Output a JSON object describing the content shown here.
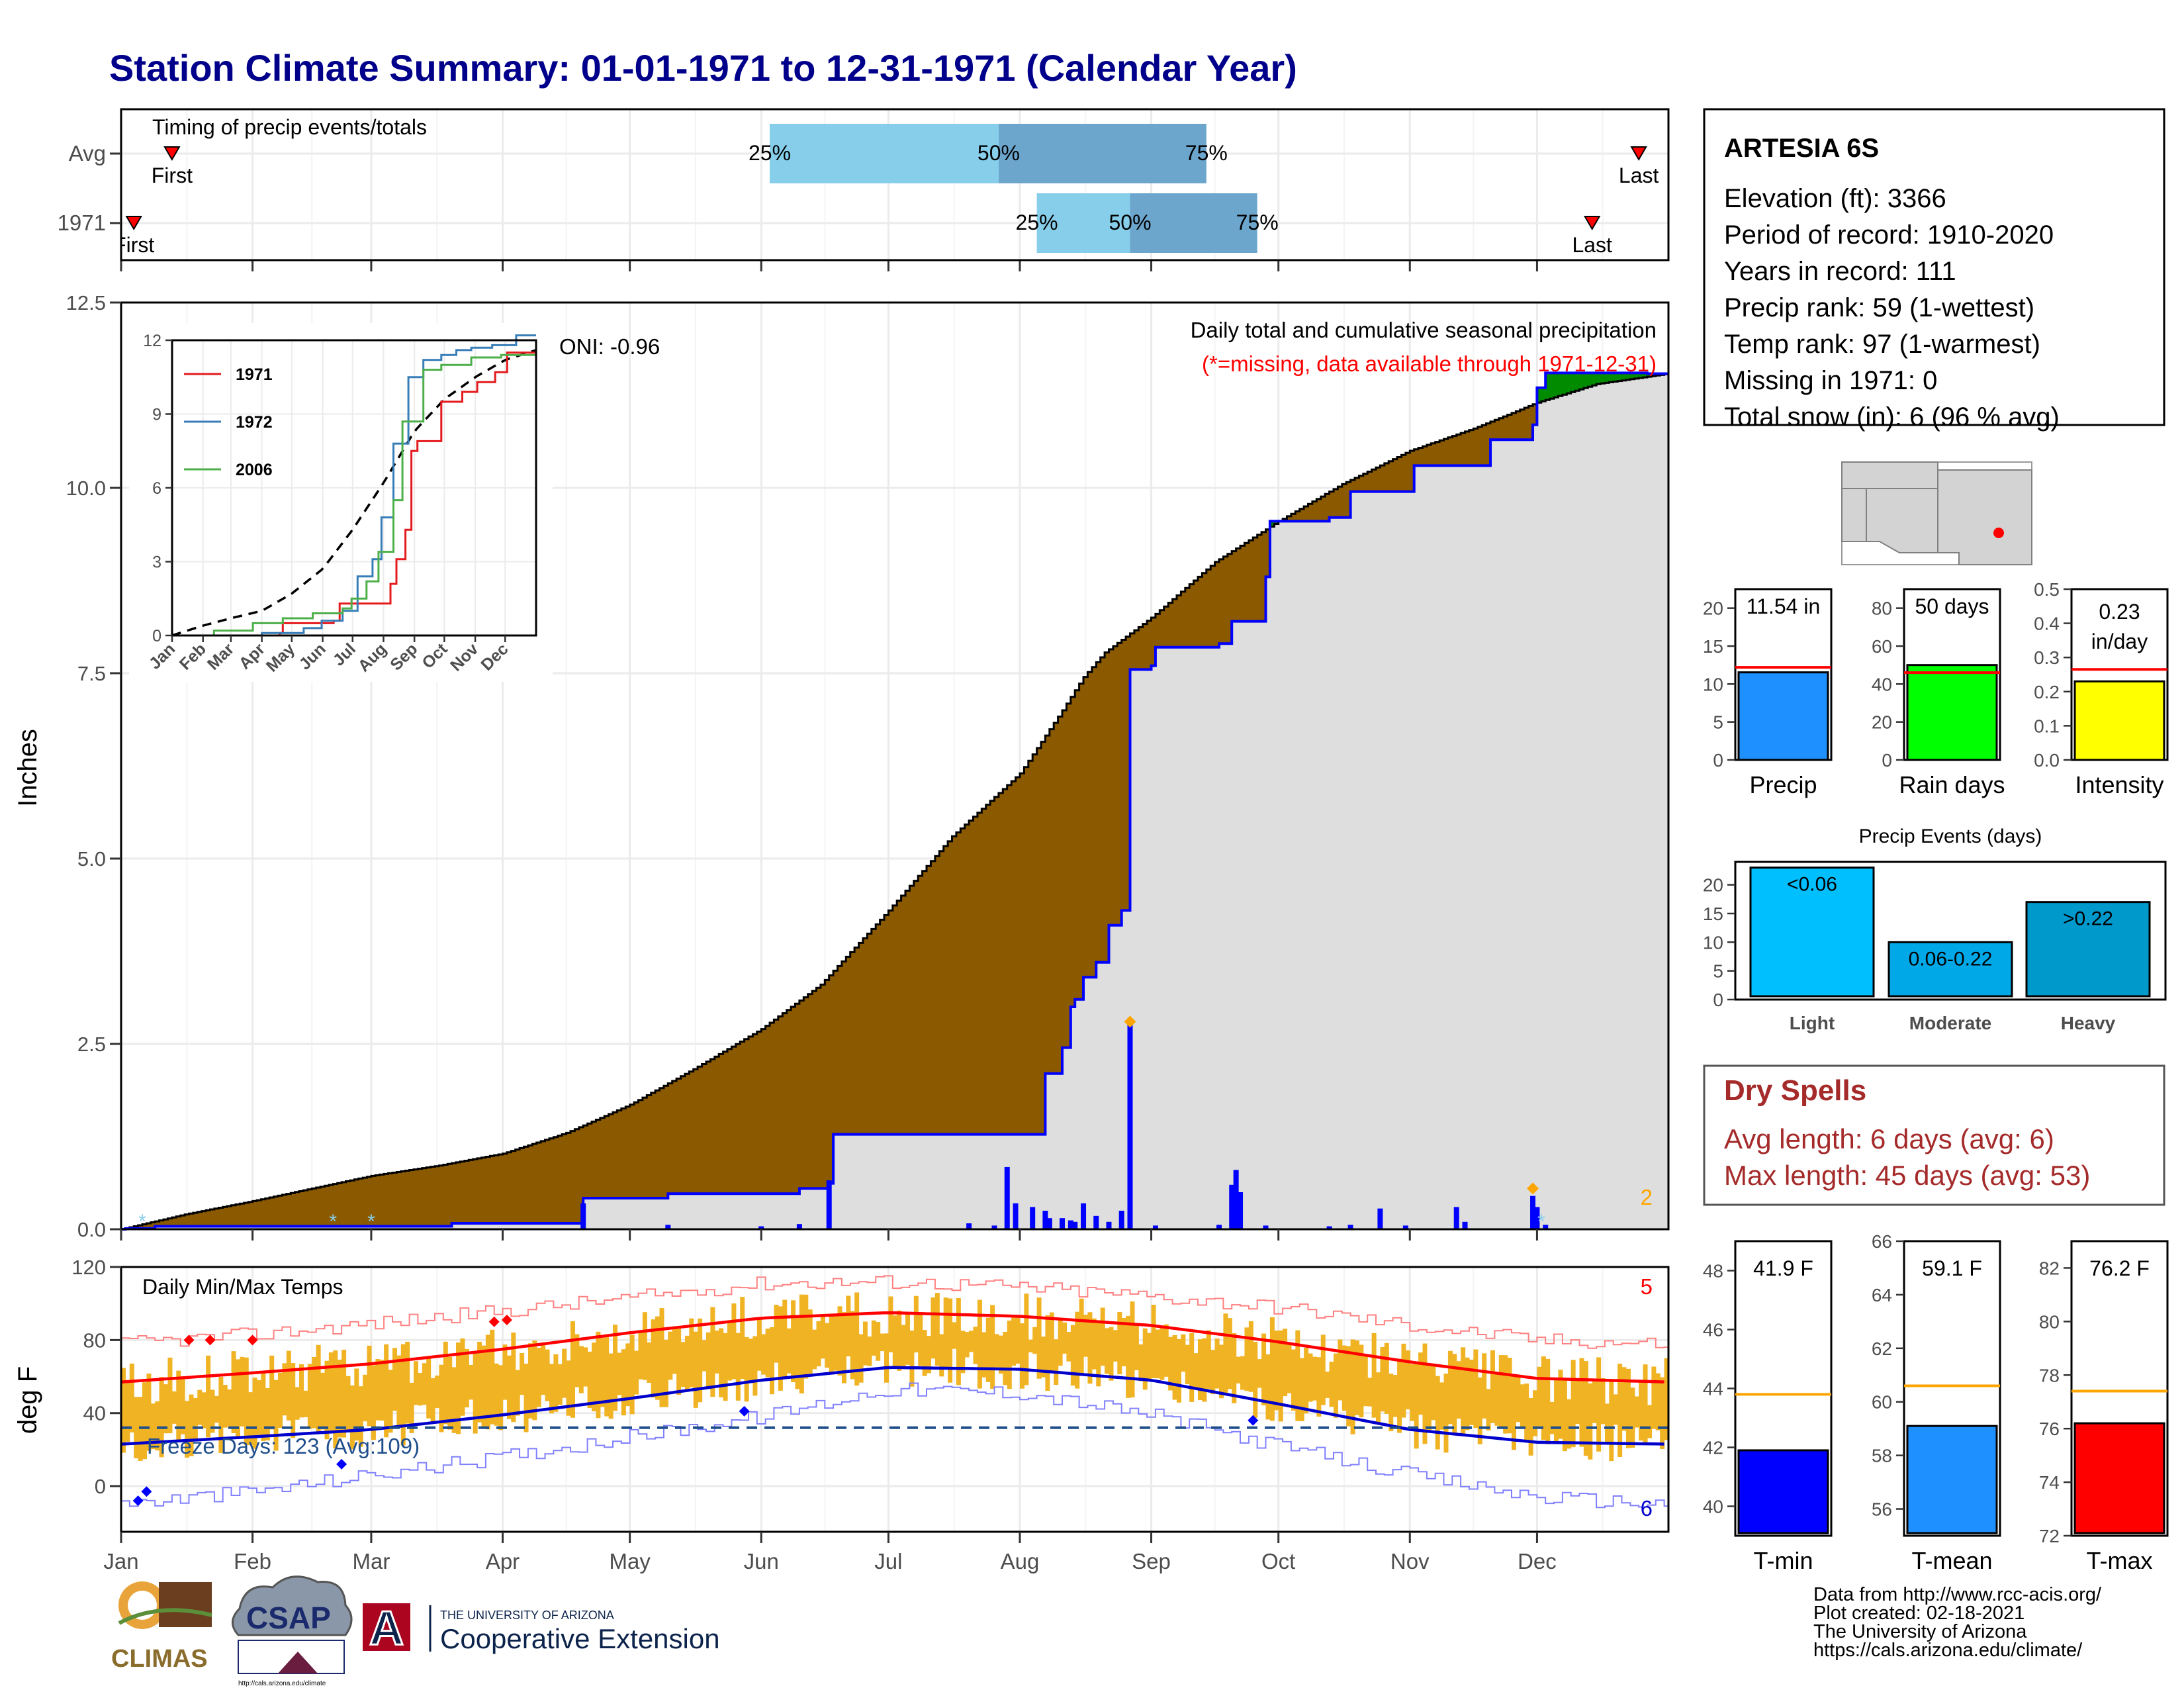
{
  "title": "Station Climate Summary: 01-01-1971 to 12-31-1971 (Calendar Year)",
  "timing": {
    "panel_label": "Timing of precip events/totals",
    "rows": [
      {
        "label": "Avg",
        "first_label": "First",
        "first_doy": 12,
        "last_label": "Last",
        "last_doy": 358,
        "p25_doy": 153,
        "p50_doy": 207,
        "p75_doy": 256
      },
      {
        "label": "1971",
        "first_label": "First",
        "first_doy": 3,
        "last_label": "Last",
        "last_doy": 347,
        "p25_doy": 216,
        "p50_doy": 238,
        "p75_doy": 268
      }
    ],
    "p25": "25%",
    "p50": "50%",
    "p75": "75%",
    "colors": {
      "q1": "#87ceeb",
      "q2": "#6ca6cd",
      "marker": "#ff0000"
    }
  },
  "precip": {
    "ylabel": "Inches",
    "ylim": [
      0,
      12.5
    ],
    "yticks": [
      "0.0",
      "2.5",
      "5.0",
      "7.5",
      "10.0",
      "12.5"
    ],
    "caption": "Daily total and cumulative seasonal precipitation",
    "missing_note": "(*=missing, data available through 1971-12-31)",
    "oni": "ONI: -0.96",
    "corner_count": "2",
    "avg_cumulative": {
      "day": [
        0,
        15,
        31,
        45,
        59,
        75,
        90,
        105,
        120,
        135,
        151,
        165,
        181,
        196,
        212,
        222,
        227,
        232,
        243,
        258,
        273,
        288,
        304,
        319,
        334,
        348,
        365
      ],
      "inches": [
        0,
        0.2,
        0.38,
        0.55,
        0.72,
        0.86,
        1.02,
        1.3,
        1.68,
        2.16,
        2.7,
        3.3,
        4.3,
        5.3,
        6.15,
        7.0,
        7.45,
        7.78,
        8.25,
        9.0,
        9.55,
        10.05,
        10.5,
        10.8,
        11.15,
        11.4,
        11.54
      ]
    },
    "cumulative_1971": {
      "day": [
        0,
        1,
        8,
        78,
        108,
        109,
        129,
        160,
        167,
        168,
        215,
        218,
        222,
        224,
        225,
        227,
        230,
        233,
        236,
        238,
        243,
        244,
        259,
        262,
        270,
        271,
        285,
        290,
        305,
        323,
        333,
        334,
        336,
        360,
        365
      ],
      "inches": [
        0,
        0.01,
        0.04,
        0.08,
        0.08,
        0.42,
        0.48,
        0.55,
        0.62,
        1.28,
        1.28,
        2.1,
        2.45,
        3.0,
        3.1,
        3.4,
        3.6,
        4.1,
        4.3,
        7.55,
        7.6,
        7.85,
        7.9,
        8.2,
        8.8,
        9.55,
        9.6,
        9.95,
        10.3,
        10.65,
        10.85,
        11.35,
        11.55,
        11.54,
        11.54
      ]
    },
    "daily_1971": {
      "day": [
        109,
        129,
        151,
        160,
        167,
        200,
        206,
        209,
        211,
        215,
        218,
        219,
        222,
        224,
        225,
        227,
        230,
        233,
        236,
        238,
        244,
        259,
        262,
        263,
        264,
        270,
        285,
        290,
        297,
        303,
        315,
        317,
        333,
        334,
        336
      ],
      "inches": [
        0.35,
        0.06,
        0.04,
        0.07,
        0.66,
        0.08,
        0.05,
        0.84,
        0.35,
        0.3,
        0.25,
        0.15,
        0.15,
        0.12,
        0.1,
        0.35,
        0.18,
        0.1,
        0.25,
        2.8,
        0.05,
        0.06,
        0.6,
        0.8,
        0.5,
        0.05,
        0.04,
        0.06,
        0.28,
        0.05,
        0.3,
        0.1,
        0.45,
        0.3,
        0.06
      ]
    },
    "diamonds": {
      "day": [
        238,
        333
      ],
      "inches": [
        2.8,
        0.55
      ]
    },
    "missing_markers_day": [
      5,
      50,
      59,
      335
    ],
    "colors": {
      "deficit": "#8b5a00",
      "surplus": "#008b00",
      "background": "#dedede",
      "line_1971": "#0000ff",
      "avg_line": "#000000",
      "diamond": "#ffa500"
    }
  },
  "inset": {
    "yticks": [
      "0",
      "3",
      "6",
      "9",
      "12"
    ],
    "months": [
      "Jan",
      "Feb",
      "Mar",
      "Apr",
      "May",
      "Jun",
      "Jul",
      "Aug",
      "Sep",
      "Oct",
      "Nov",
      "Dec"
    ],
    "ylim": [
      0,
      12
    ],
    "series": [
      {
        "name": "1971",
        "color": "#e41a1c",
        "day": [
          0,
          108,
          109,
          160,
          168,
          215,
          218,
          225,
          233,
          238,
          244,
          270,
          290,
          305,
          323,
          336,
          365
        ],
        "inches": [
          0,
          0.1,
          0.5,
          0.6,
          1.3,
          1.3,
          2.1,
          3.1,
          4.3,
          7.5,
          7.9,
          9.5,
          9.9,
          10.3,
          10.7,
          11.5,
          11.5
        ]
      },
      {
        "name": "1972",
        "color": "#377eb8",
        "day": [
          0,
          90,
          130,
          150,
          170,
          185,
          200,
          210,
          220,
          235,
          250,
          270,
          285,
          300,
          320,
          345,
          365
        ],
        "inches": [
          0,
          0.1,
          0.3,
          0.6,
          1.0,
          2.4,
          3.1,
          4.8,
          7.8,
          10.5,
          11.2,
          11.4,
          11.6,
          11.7,
          11.8,
          12.2,
          12.3
        ]
      },
      {
        "name": "2006",
        "color": "#4daf4a",
        "day": [
          0,
          40,
          80,
          110,
          140,
          170,
          180,
          195,
          205,
          220,
          230,
          250,
          270,
          300,
          330,
          365
        ],
        "inches": [
          0,
          0.2,
          0.5,
          0.7,
          0.9,
          1.1,
          1.5,
          2.2,
          3.4,
          5.5,
          8.7,
          10.8,
          11.0,
          11.3,
          11.4,
          11.0
        ]
      }
    ],
    "avg_line": {
      "day": [
        0,
        31,
        59,
        90,
        120,
        151,
        181,
        212,
        243,
        273,
        304,
        334,
        365
      ],
      "inches": [
        0,
        0.4,
        0.7,
        1.0,
        1.7,
        2.7,
        4.3,
        6.2,
        8.3,
        9.6,
        10.5,
        11.2,
        11.6
      ]
    }
  },
  "temps": {
    "ylabel": "deg F",
    "ylim": [
      -25,
      120
    ],
    "yticks": [
      "0",
      "40",
      "80",
      "120"
    ],
    "panel_label": "Daily Min/Max Temps",
    "freeze_label": "Freeze Days: 123 (Avg:109)",
    "freeze_line_f": 32,
    "count_top": "5",
    "count_bottom": "6",
    "avg_max": {
      "day": [
        0,
        31,
        59,
        90,
        120,
        151,
        181,
        212,
        243,
        273,
        304,
        334,
        365
      ],
      "f": [
        57,
        62,
        67,
        75,
        84,
        92,
        95,
        93,
        88,
        79,
        68,
        59,
        57
      ]
    },
    "avg_min": {
      "day": [
        0,
        31,
        59,
        90,
        120,
        151,
        181,
        212,
        243,
        273,
        304,
        334,
        365
      ],
      "f": [
        23,
        27,
        31,
        39,
        48,
        58,
        65,
        64,
        58,
        45,
        31,
        24,
        23
      ]
    },
    "record_max": {
      "day": [
        0,
        31,
        59,
        90,
        120,
        151,
        181,
        212,
        243,
        273,
        304,
        334,
        365
      ],
      "f": [
        78,
        83,
        89,
        96,
        103,
        111,
        112,
        109,
        104,
        98,
        88,
        80,
        78
      ]
    },
    "record_min": {
      "day": [
        0,
        31,
        59,
        90,
        120,
        151,
        181,
        212,
        243,
        273,
        304,
        334,
        365
      ],
      "f": [
        -10,
        -3,
        6,
        16,
        27,
        38,
        53,
        51,
        39,
        22,
        6,
        -6,
        -10
      ]
    },
    "red_diamonds": {
      "day": [
        16,
        21,
        31,
        88,
        91
      ],
      "f": [
        80,
        80,
        80,
        90,
        91
      ]
    },
    "blue_diamonds": {
      "day": [
        4,
        6,
        52,
        147,
        267
      ],
      "f": [
        -8,
        -3,
        12,
        41,
        36
      ]
    },
    "colors": {
      "bar": "#f0b323",
      "avg_max": "#ff0000",
      "avg_min": "#0000cd",
      "record_max": "#ff8080",
      "record_min": "#8080ff",
      "freeze": "#1f4e8c"
    }
  },
  "x_months": [
    "Jan",
    "Feb",
    "Mar",
    "Apr",
    "May",
    "Jun",
    "Jul",
    "Aug",
    "Sep",
    "Oct",
    "Nov",
    "Dec"
  ],
  "station": {
    "name": "ARTESIA 6S",
    "lines": [
      "Elevation (ft): 3366",
      "Period of record: 1910-2020",
      "Years in record: 111",
      "Precip rank: 59 (1-wettest)",
      "Temp rank: 97 (1-warmest)",
      "Missing in 1971: 0",
      "Total snow (in): 6 (96 % avg)"
    ]
  },
  "mini_bars": [
    {
      "label": "Precip",
      "value_label": "11.54 in",
      "value": 11.54,
      "avg": 12.2,
      "yticks": [
        "0",
        "5",
        "10",
        "15",
        "20"
      ],
      "ylim": [
        0,
        22.5
      ],
      "color": "#1e90ff"
    },
    {
      "label": "Rain days",
      "value_label": "50 days",
      "value": 50,
      "avg": 46,
      "yticks": [
        "0",
        "20",
        "40",
        "60",
        "80"
      ],
      "ylim": [
        0,
        90
      ],
      "color": "#00ff00"
    },
    {
      "label": "Intensity",
      "value_label": "0.23 in/day",
      "value_line1": "0.23",
      "value_line2": "in/day",
      "value": 0.23,
      "avg": 0.265,
      "yticks": [
        "0.0",
        "0.1",
        "0.2",
        "0.3",
        "0.4",
        "0.5"
      ],
      "ylim": [
        0,
        0.5
      ],
      "color": "#ffff00"
    }
  ],
  "events": {
    "title": "Precip Events (days)",
    "yticks": [
      "0",
      "5",
      "10",
      "15",
      "20"
    ],
    "ylim": [
      0,
      24
    ],
    "categories": [
      "Light",
      "Moderate",
      "Heavy"
    ],
    "bar_labels": [
      "<0.06",
      "0.06-0.22",
      ">0.22"
    ],
    "values": [
      23,
      10,
      17
    ],
    "colors": [
      "#00bfff",
      "#00a8e8",
      "#0099cc"
    ]
  },
  "dry_spells": {
    "title": "Dry Spells",
    "avg_length": "Avg length: 6 days (avg: 6)",
    "max_length": "Max length: 45 days (avg: 53)",
    "color": "#a52a2a"
  },
  "temp_bars": [
    {
      "label": "T-min",
      "value_label": "41.9 F",
      "value": 41.9,
      "avg": 43.8,
      "ylim": [
        39,
        49
      ],
      "yticks": [
        "40",
        "42",
        "44",
        "46",
        "48"
      ],
      "color": "#0000ff"
    },
    {
      "label": "T-mean",
      "value_label": "59.1 F",
      "value": 59.1,
      "avg": 60.6,
      "ylim": [
        55,
        66
      ],
      "yticks": [
        "56",
        "58",
        "60",
        "62",
        "64",
        "66"
      ],
      "color": "#1e90ff"
    },
    {
      "label": "T-max",
      "value_label": "76.2 F",
      "value": 76.2,
      "avg": 77.4,
      "ylim": [
        72,
        83
      ],
      "yticks": [
        "72",
        "74",
        "76",
        "78",
        "80",
        "82"
      ],
      "color": "#ff0000"
    }
  ],
  "footer": {
    "lines": [
      "Data from http://www.rcc-acis.org/",
      "Plot created: 02-18-2021",
      "The University of Arizona",
      "https://cals.arizona.edu/climate/"
    ]
  },
  "logos": {
    "climas": "CLIMAS",
    "csap": "CSAP",
    "csap_url": "http://cals.arizona.edu/climate",
    "ua_line1": "THE UNIVERSITY OF ARIZONA",
    "ua_line2": "Cooperative Extension",
    "ua_letter": "A"
  }
}
